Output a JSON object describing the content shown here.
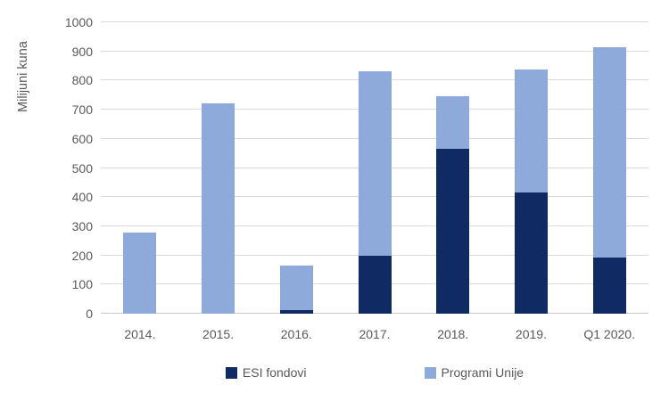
{
  "chart_data": {
    "type": "bar",
    "stacked": true,
    "title": "",
    "ylabel": "Milijuni kuna",
    "xlabel": "",
    "categories": [
      "2014.",
      "2015.",
      "2016.",
      "2017.",
      "2018.",
      "2019.",
      "Q1 2020."
    ],
    "series": [
      {
        "name": "ESI fondovi",
        "color": "#102a63",
        "values": [
          0,
          0,
          13,
          198,
          565,
          417,
          194
        ]
      },
      {
        "name": "Programi Unije",
        "color": "#8eaadb",
        "values": [
          277,
          723,
          152,
          634,
          180,
          421,
          721
        ]
      }
    ],
    "stack_totals": [
      277,
      723,
      165,
      832,
      745,
      838,
      915
    ],
    "ylim": [
      0,
      1000
    ],
    "ytick_step": 100,
    "ytick_labels": [
      "0",
      "100",
      "200",
      "300",
      "400",
      "500",
      "600",
      "700",
      "800",
      "900",
      "1000"
    ],
    "grid": true,
    "gridline_color": "#d9d9d9",
    "legend_position": "bottom",
    "text_color": "#595959",
    "background_color": "#ffffff"
  }
}
